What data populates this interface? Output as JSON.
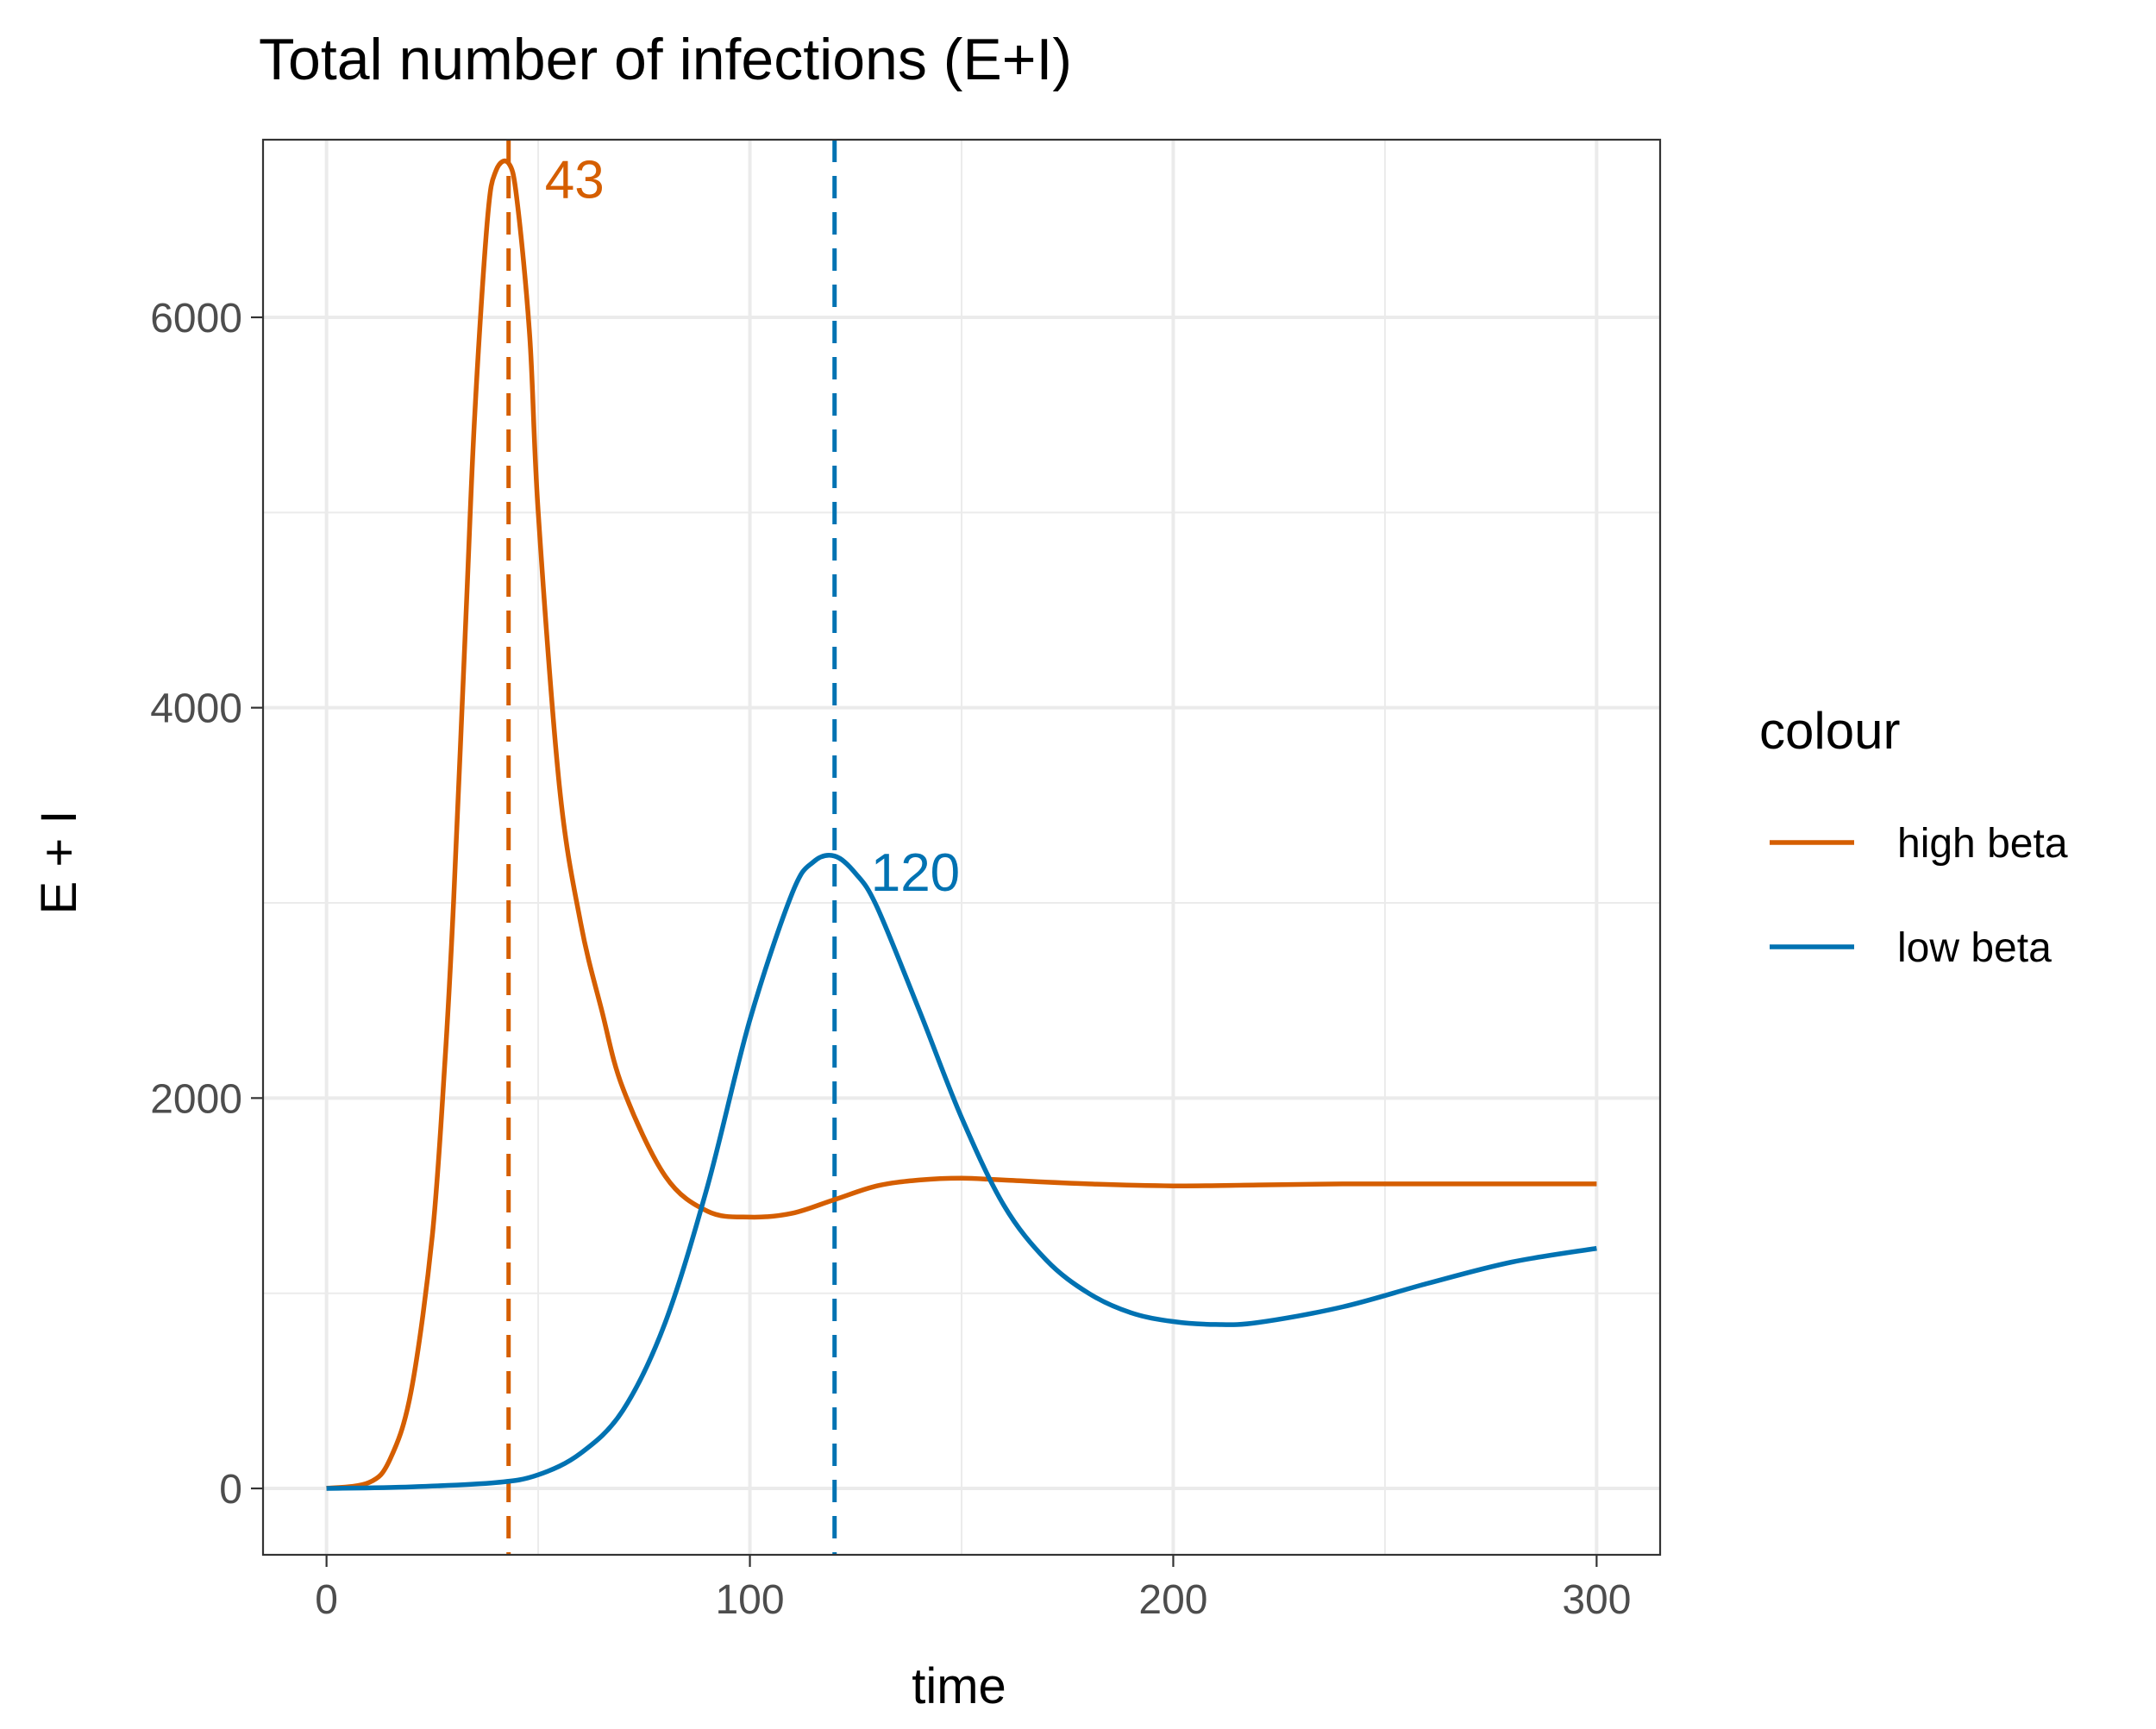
{
  "chart_data": {
    "type": "line",
    "title": "Total number of infections (E+I)",
    "xlabel": "time",
    "ylabel": "E + I",
    "xlim": [
      -15,
      315
    ],
    "ylim": [
      -340,
      6910
    ],
    "x_ticks": [
      0,
      100,
      200,
      300
    ],
    "y_ticks": [
      0,
      2000,
      4000,
      6000
    ],
    "x_tick_labels": [
      "0",
      "100",
      "200",
      "300"
    ],
    "y_tick_labels": [
      "0",
      "2000",
      "4000",
      "6000"
    ],
    "x_minor": [
      50,
      150,
      250
    ],
    "y_minor": [
      1000,
      3000,
      5000
    ],
    "grid": true,
    "legend": {
      "title": "colour",
      "position": "right"
    },
    "series": [
      {
        "name": "high beta",
        "color": "#D55E00",
        "x": [
          0,
          10,
          15,
          20,
          25,
          28,
          30,
          33,
          35,
          38,
          40,
          43,
          45,
          48,
          50,
          55,
          60,
          65,
          70,
          80,
          90,
          100,
          110,
          120,
          130,
          140,
          150,
          160,
          180,
          200,
          220,
          240,
          260,
          280,
          300
        ],
        "values": [
          0,
          30,
          150,
          500,
          1300,
          2200,
          3000,
          4500,
          5500,
          6500,
          6750,
          6790,
          6600,
          5900,
          5000,
          3600,
          2900,
          2450,
          2050,
          1600,
          1420,
          1390,
          1410,
          1480,
          1550,
          1580,
          1590,
          1580,
          1560,
          1550,
          1555,
          1560,
          1560,
          1560,
          1560
        ]
      },
      {
        "name": "low beta",
        "color": "#0072B2",
        "x": [
          0,
          20,
          40,
          50,
          60,
          70,
          80,
          90,
          100,
          110,
          115,
          120,
          125,
          130,
          140,
          150,
          160,
          170,
          180,
          190,
          200,
          210,
          220,
          240,
          260,
          280,
          300
        ],
        "values": [
          0,
          8,
          30,
          70,
          180,
          400,
          850,
          1550,
          2400,
          3050,
          3210,
          3240,
          3150,
          2980,
          2450,
          1900,
          1450,
          1170,
          1000,
          900,
          855,
          840,
          850,
          930,
          1050,
          1160,
          1230
        ]
      }
    ],
    "vlines": [
      {
        "x": 43,
        "color": "#D55E00",
        "label": "43",
        "label_y": 6700
      },
      {
        "x": 120,
        "color": "#0072B2",
        "label": "120",
        "label_y": 3150
      }
    ]
  }
}
